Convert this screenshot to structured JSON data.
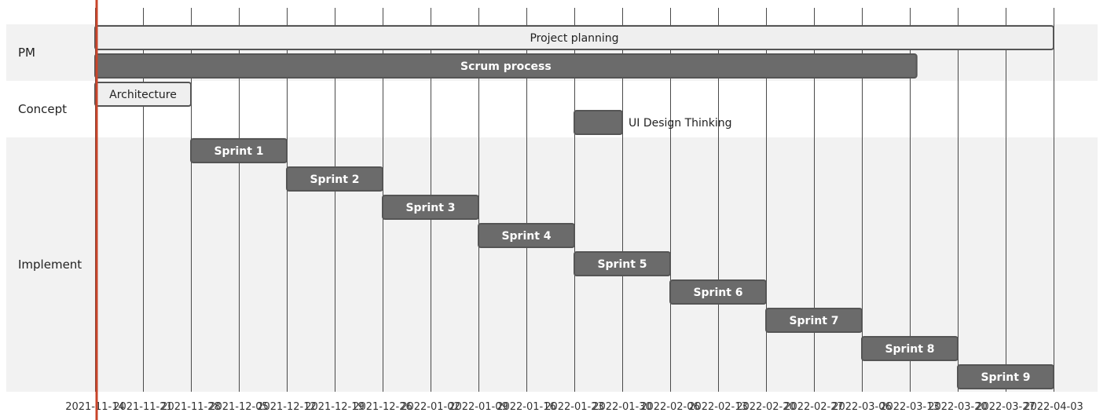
{
  "chart_data": {
    "type": "gantt",
    "today_marker": "2021-11-14",
    "x_ticks": [
      "2021-11-14",
      "2021-11-21",
      "2021-11-28",
      "2021-12-05",
      "2021-12-12",
      "2021-12-19",
      "2021-12-26",
      "2022-01-02",
      "2022-01-09",
      "2022-01-16",
      "2022-01-23",
      "2022-01-30",
      "2022-02-06",
      "2022-02-13",
      "2022-02-20",
      "2022-02-27",
      "2022-03-06",
      "2022-03-13",
      "2022-03-20",
      "2022-03-27",
      "2022-04-03"
    ],
    "sections": [
      {
        "name": "PM",
        "shaded": true,
        "tasks": [
          {
            "name": "Project planning",
            "start": "2021-11-14",
            "end": "2022-04-03",
            "style": "light"
          },
          {
            "name": "Scrum process",
            "start": "2021-11-14",
            "end": "2022-03-14",
            "style": "dark"
          }
        ]
      },
      {
        "name": "Concept",
        "shaded": false,
        "tasks": [
          {
            "name": "Architecture",
            "start": "2021-11-14",
            "end": "2021-11-28",
            "style": "light"
          },
          {
            "name": "UI Design Thinking",
            "start": "2022-01-23",
            "end": "2022-01-30",
            "style": "dark",
            "label_outside": true
          }
        ]
      },
      {
        "name": "Implement",
        "shaded": true,
        "tasks": [
          {
            "name": "Sprint 1",
            "start": "2021-11-28",
            "end": "2021-12-12",
            "style": "dark"
          },
          {
            "name": "Sprint 2",
            "start": "2021-12-12",
            "end": "2021-12-26",
            "style": "dark"
          },
          {
            "name": "Sprint 3",
            "start": "2021-12-26",
            "end": "2022-01-09",
            "style": "dark"
          },
          {
            "name": "Sprint 4",
            "start": "2022-01-09",
            "end": "2022-01-23",
            "style": "dark"
          },
          {
            "name": "Sprint 5",
            "start": "2022-01-23",
            "end": "2022-02-06",
            "style": "dark"
          },
          {
            "name": "Sprint 6",
            "start": "2022-02-06",
            "end": "2022-02-20",
            "style": "dark"
          },
          {
            "name": "Sprint 7",
            "start": "2022-02-20",
            "end": "2022-03-06",
            "style": "dark"
          },
          {
            "name": "Sprint 8",
            "start": "2022-03-06",
            "end": "2022-03-20",
            "style": "dark"
          },
          {
            "name": "Sprint 9",
            "start": "2022-03-20",
            "end": "2022-04-03",
            "style": "dark"
          }
        ]
      }
    ],
    "colors": {
      "section_shade": "#f2f2f2",
      "grid": "#4a4a4a",
      "task_dark_fill": "#6b6b6b",
      "task_light_fill": "#efefef",
      "task_stroke": "#555555",
      "today_line": "#c8442a",
      "label_dark": "#ffffff",
      "label_light": "#222222"
    }
  }
}
